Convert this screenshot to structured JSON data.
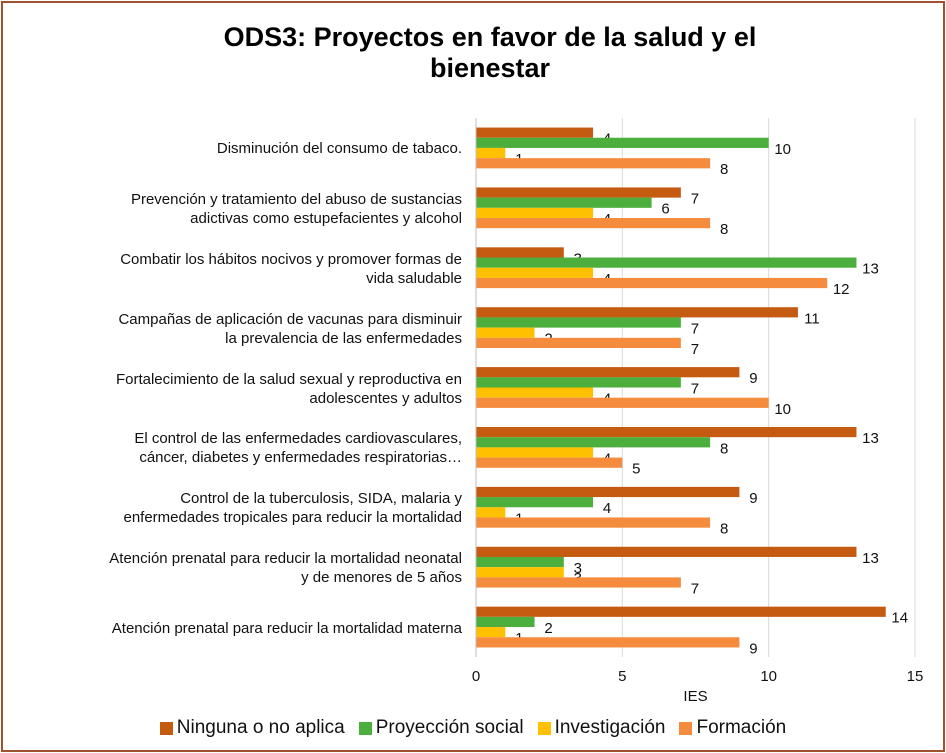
{
  "chart_data": {
    "type": "bar",
    "orientation": "horizontal",
    "title": "ODS3: Proyectos en favor de  la salud y el bienestar",
    "x_label": "IES",
    "categories": [
      "Disminución del consumo de tabaco.",
      "Prevención y tratamiento del abuso de sustancias\nadictivas como estupefacientes y alcohol",
      "Combatir los hábitos nocivos y promover formas de\nvida saludable",
      "Campañas de aplicación de vacunas para disminuir\nla prevalencia de las enfermedades",
      "Fortalecimiento de  la salud sexual y reproductiva en\nadolescentes y adultos",
      "El control de las enfermedades cardiovasculares,\ncáncer, diabetes y enfermedades respiratorias…",
      "Control de la tuberculosis, SIDA, malaria y\nenfermedades tropicales para reducir la mortalidad",
      "Atención prenatal para reducir la mortalidad neonatal\ny de menores de 5 años",
      "Atención prenatal para reducir la mortalidad materna"
    ],
    "series": [
      {
        "name": "Ninguna o no aplica",
        "color": "#c55a11",
        "values": [
          4,
          7,
          3,
          11,
          9,
          13,
          9,
          13,
          14
        ]
      },
      {
        "name": "Proyección social",
        "color": "#4cae3c",
        "values": [
          10,
          6,
          13,
          7,
          7,
          8,
          4,
          3,
          2
        ]
      },
      {
        "name": "Investigación",
        "color": "#ffc000",
        "values": [
          1,
          4,
          4,
          2,
          4,
          4,
          1,
          3,
          1
        ]
      },
      {
        "name": "Formación",
        "color": "#f58b3d",
        "values": [
          8,
          8,
          12,
          7,
          10,
          5,
          8,
          7,
          9
        ]
      }
    ],
    "xlim": [
      0,
      15
    ],
    "xticks": [
      0,
      5,
      10,
      15
    ],
    "grid": true,
    "legend": "bottom"
  }
}
